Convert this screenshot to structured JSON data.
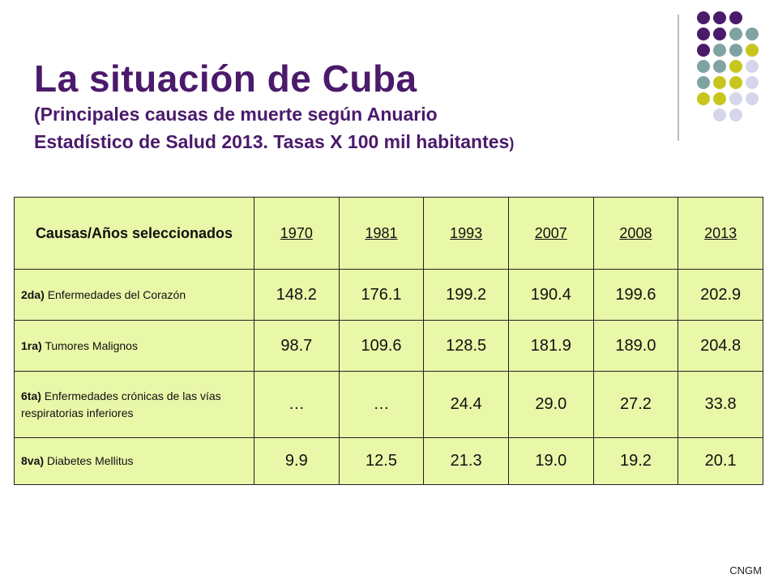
{
  "title": {
    "main": "La situación de Cuba",
    "sub_line1": "(Principales causas de muerte según Anuario",
    "sub_line2": "Estadístico de Salud 2013. Tasas X 100 mil habitantes",
    "sub_close": ")"
  },
  "table": {
    "header_label": "Causas/Años seleccionados",
    "years": [
      "1970",
      "1981",
      "1993",
      "2007",
      "2008",
      "2013"
    ],
    "rows": [
      {
        "rank": "2da)",
        "cause": "Enfermedades del Corazón",
        "values": [
          "148.2",
          "176.1",
          "199.2",
          "190.4",
          "199.6",
          "202.9"
        ]
      },
      {
        "rank": "1ra)",
        "cause": "Tumores Malignos",
        "values": [
          "98.7",
          "109.6",
          "128.5",
          "181.9",
          "189.0",
          "204.8"
        ]
      },
      {
        "rank": "6ta)",
        "cause": "Enfermedades crónicas de las vías respiratorias inferiores",
        "values": [
          "…",
          "…",
          "24.4",
          "29.0",
          "27.2",
          "33.8"
        ]
      },
      {
        "rank": "8va)",
        "cause": "Diabetes Mellitus",
        "values": [
          "9.9",
          "12.5",
          "21.3",
          "19.0",
          "19.2",
          "20.1"
        ]
      }
    ]
  },
  "footer": "CNGM",
  "colors": {
    "title": "#4b1a6b",
    "table_background": "#e8f7a8",
    "dot_purple": "#4b1a6b",
    "dot_teal": "#7fa3a3",
    "dot_olive": "#c6c61e",
    "dot_lavender": "#d6d6ea"
  }
}
